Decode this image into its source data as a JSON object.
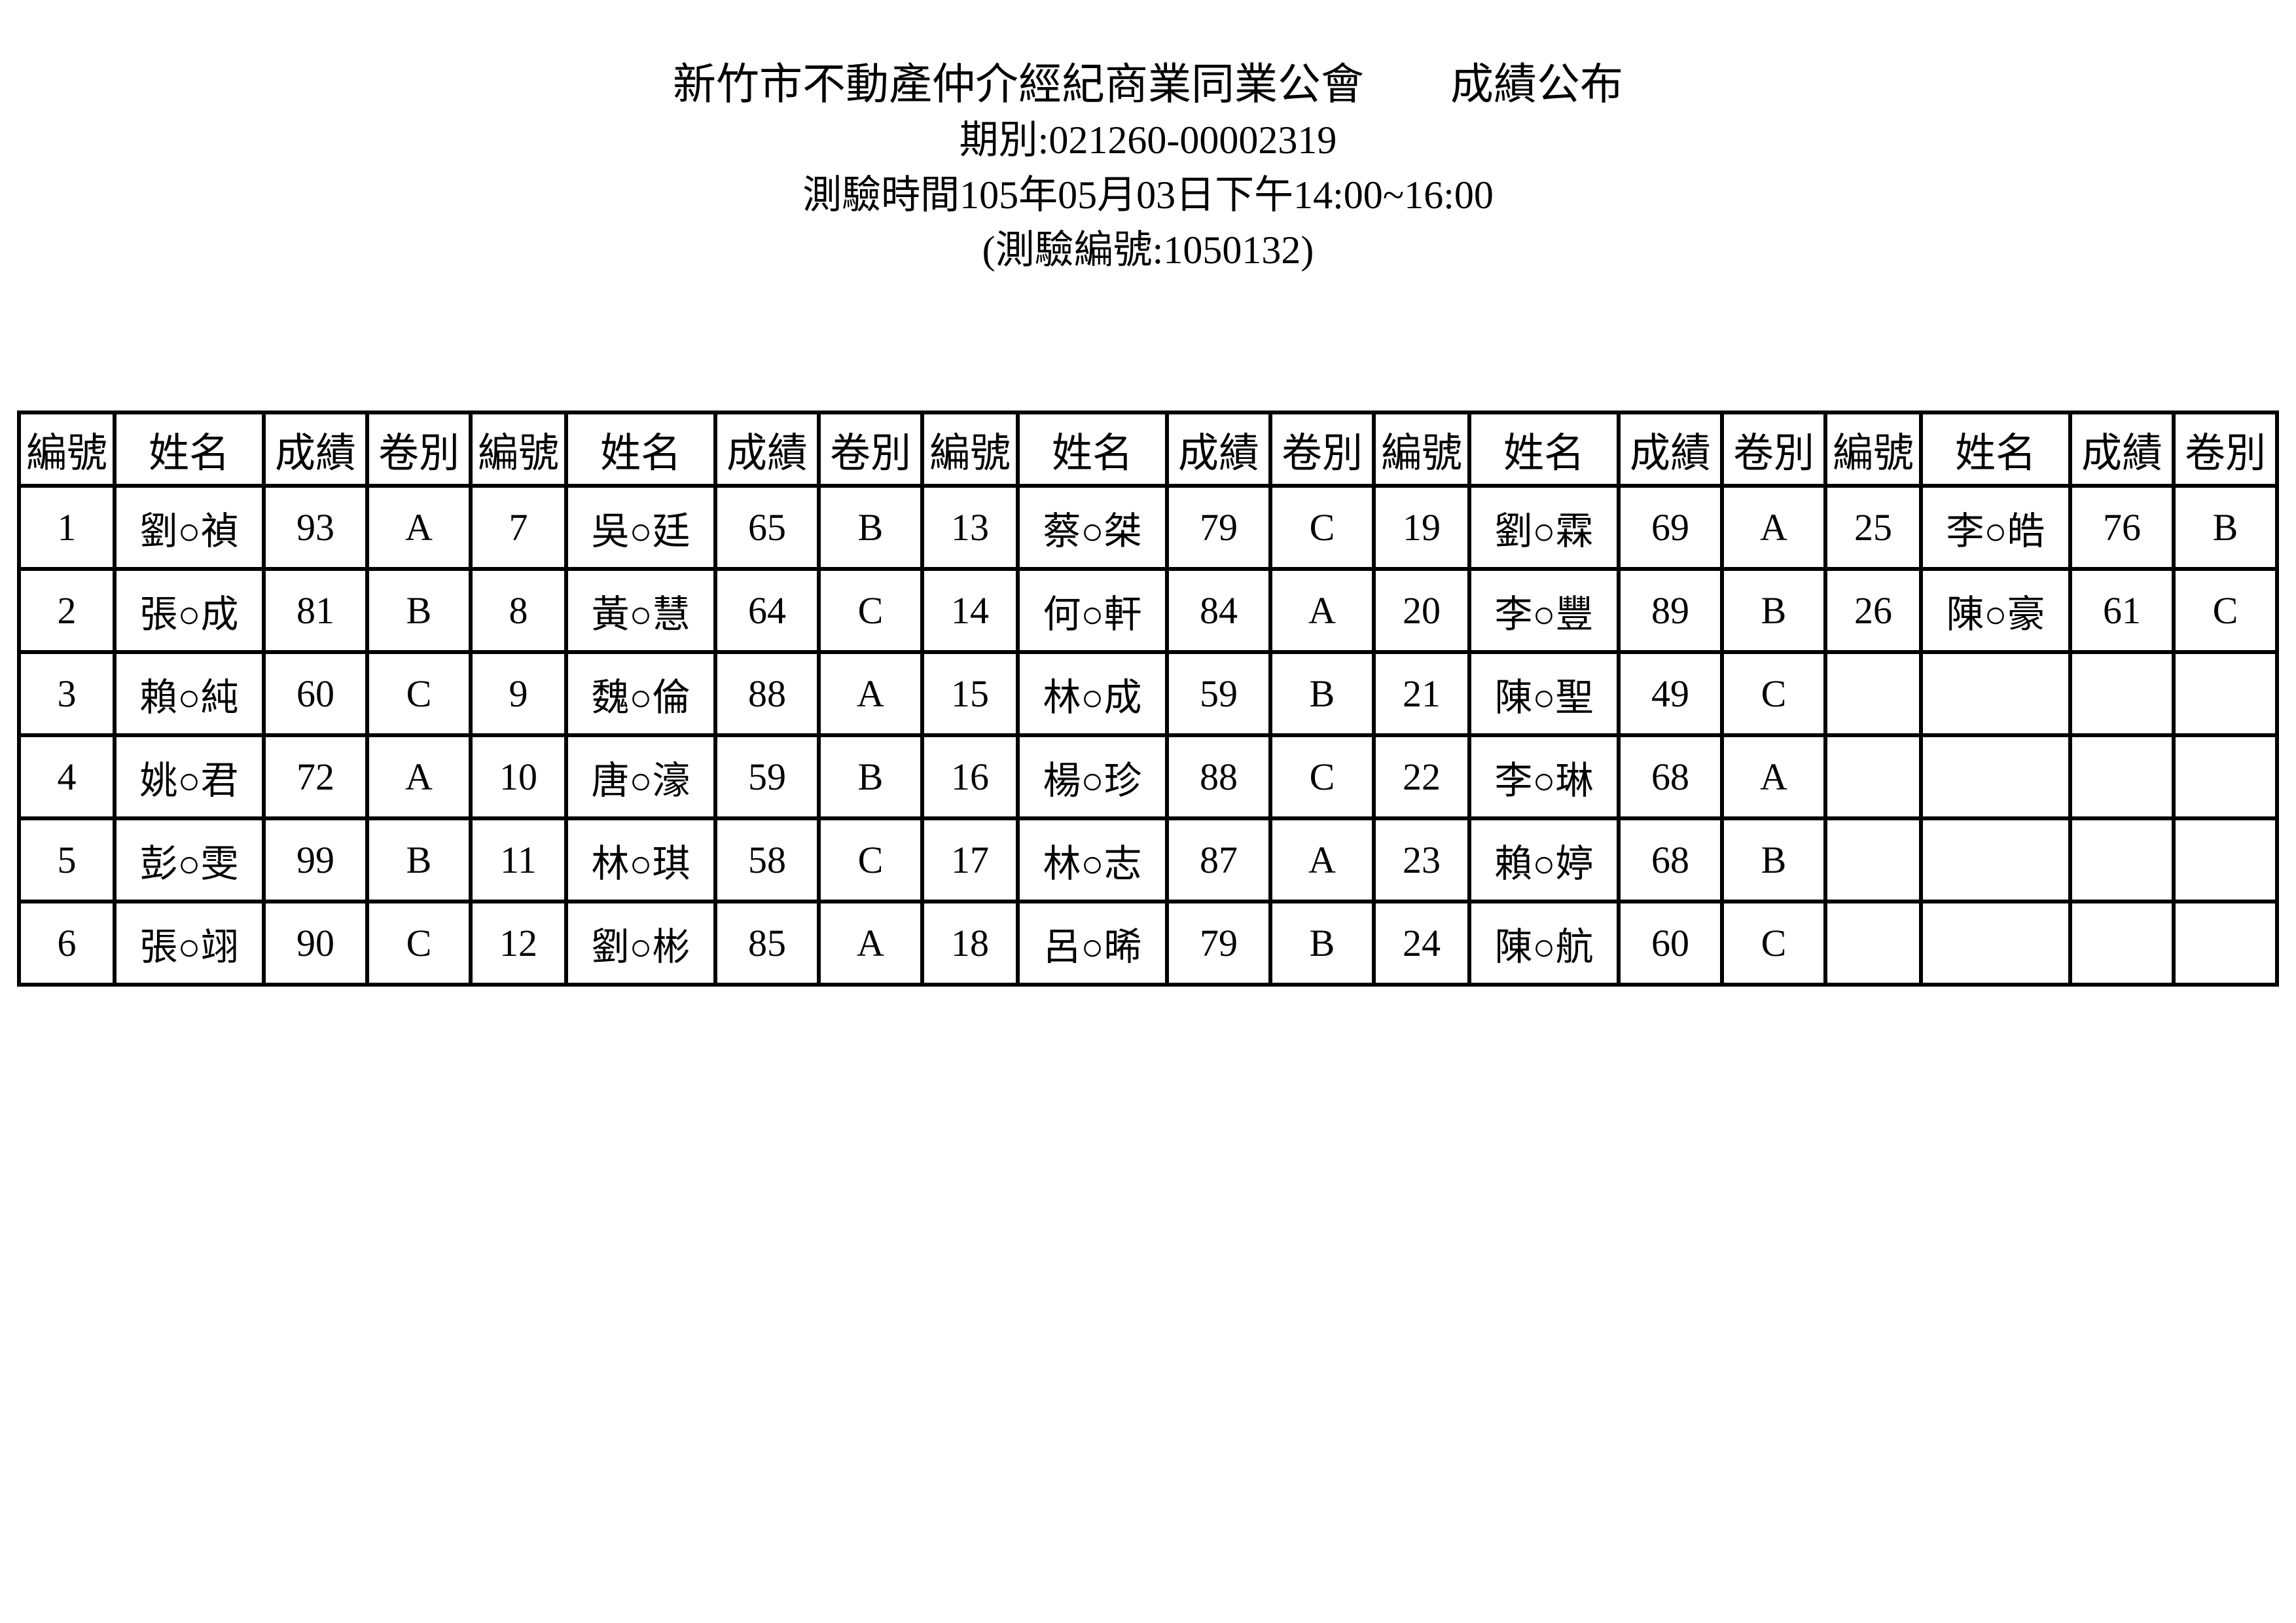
{
  "header": {
    "title_line1": "新竹市不動產仲介經紀商業同業公會　　成績公布",
    "title_line2": "期別:021260-00002319",
    "title_line3": "測驗時間105年05月03日下午14:00~16:00",
    "title_line4": "(測驗編號:1050132)"
  },
  "table": {
    "column_header_labels": [
      "編號",
      "姓名",
      "成績",
      "卷別"
    ],
    "blocks": 5,
    "matrix": [
      [
        "編號",
        "姓名",
        "成績",
        "卷別",
        "編號",
        "姓名",
        "成績",
        "卷別",
        "編號",
        "姓名",
        "成績",
        "卷別",
        "編號",
        "姓名",
        "成績",
        "卷別",
        "編號",
        "姓名",
        "成績",
        "卷別"
      ],
      [
        "1",
        "劉○禎",
        "93",
        "A",
        "7",
        "吳○廷",
        "65",
        "B",
        "13",
        "蔡○桀",
        "79",
        "C",
        "19",
        "劉○霖",
        "69",
        "A",
        "25",
        "李○皓",
        "76",
        "B"
      ],
      [
        "2",
        "張○成",
        "81",
        "B",
        "8",
        "黃○慧",
        "64",
        "C",
        "14",
        "何○軒",
        "84",
        "A",
        "20",
        "李○豐",
        "89",
        "B",
        "26",
        "陳○豪",
        "61",
        "C"
      ],
      [
        "3",
        "賴○純",
        "60",
        "C",
        "9",
        "魏○倫",
        "88",
        "A",
        "15",
        "林○成",
        "59",
        "B",
        "21",
        "陳○聖",
        "49",
        "C",
        "",
        "",
        "",
        ""
      ],
      [
        "4",
        "姚○君",
        "72",
        "A",
        "10",
        "唐○濠",
        "59",
        "B",
        "16",
        "楊○珍",
        "88",
        "C",
        "22",
        "李○琳",
        "68",
        "A",
        "",
        "",
        "",
        ""
      ],
      [
        "5",
        "彭○雯",
        "99",
        "B",
        "11",
        "林○琪",
        "58",
        "C",
        "17",
        "林○志",
        "87",
        "A",
        "23",
        "賴○婷",
        "68",
        "B",
        "",
        "",
        "",
        ""
      ],
      [
        "6",
        "張○翊",
        "90",
        "C",
        "12",
        "劉○彬",
        "85",
        "A",
        "18",
        "呂○晞",
        "79",
        "B",
        "24",
        "陳○航",
        "60",
        "C",
        "",
        "",
        "",
        ""
      ]
    ],
    "text_color": "#000000",
    "grid_color": "#000000",
    "background_color": "#ffffff"
  }
}
